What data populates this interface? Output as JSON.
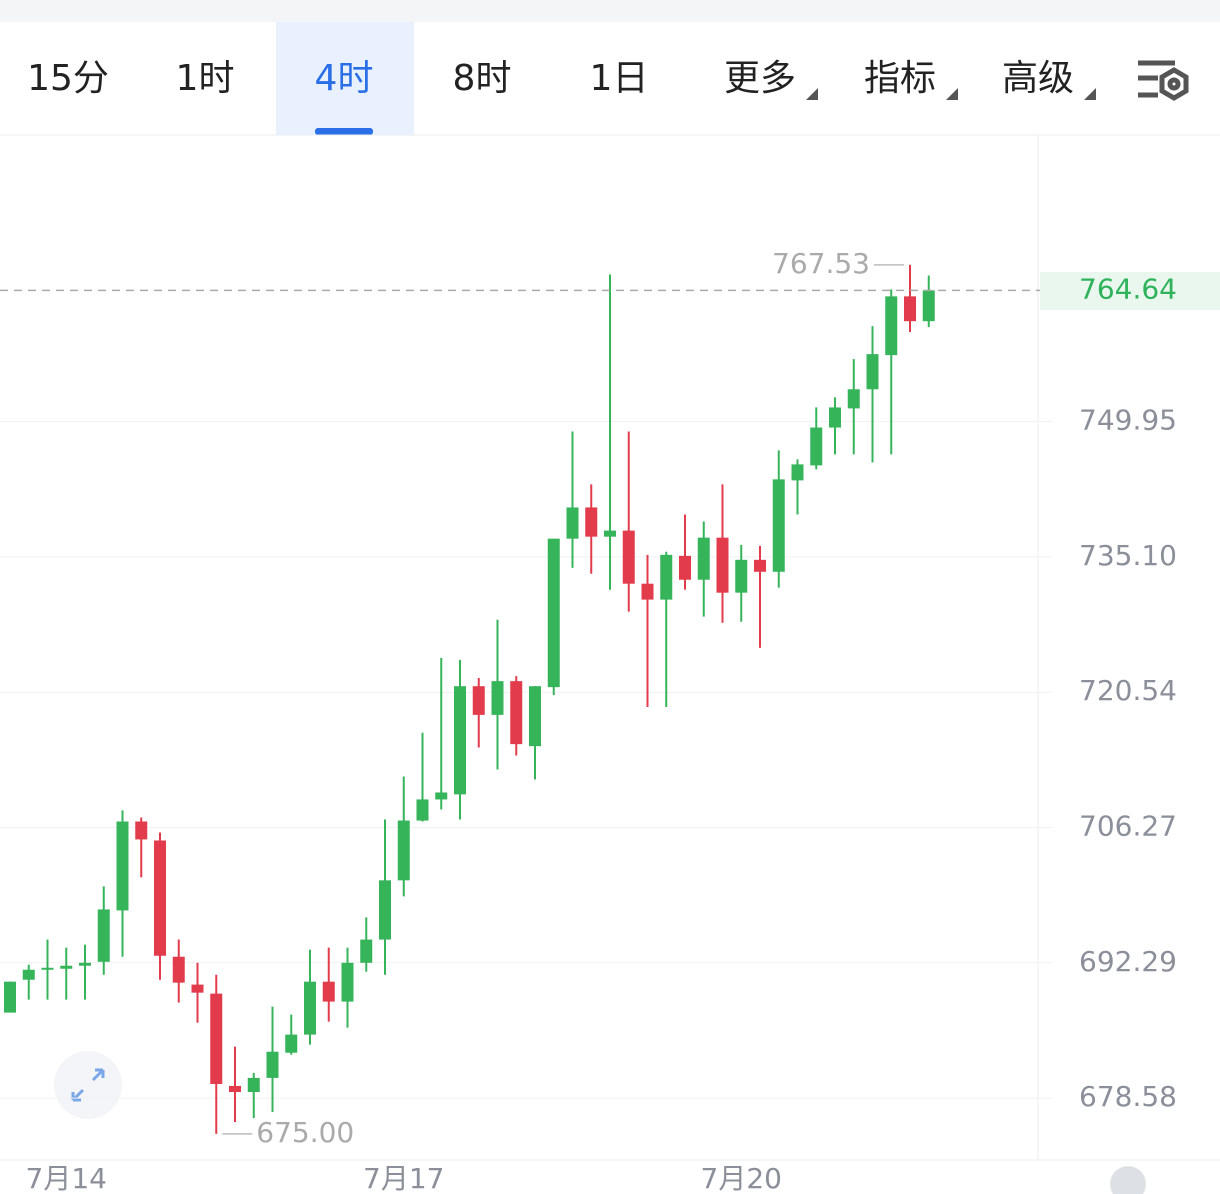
{
  "toolbar": {
    "tabs": [
      "15分",
      "1时",
      "4时",
      "8时",
      "1日",
      "更多",
      "指标",
      "高级"
    ],
    "selected": 2
  },
  "chart_data": {
    "type": "candlestick",
    "categories": [
      null,
      null,
      null,
      "7月14",
      null,
      null,
      null,
      null,
      null,
      null,
      null,
      null,
      null,
      null,
      null,
      null,
      null,
      null,
      null,
      null,
      null,
      "7月17",
      null,
      null,
      null,
      null,
      null,
      null,
      null,
      null,
      null,
      null,
      null,
      null,
      null,
      null,
      null,
      null,
      null,
      "7月20",
      null,
      null,
      null,
      null,
      null,
      null,
      null,
      null,
      null,
      null
    ],
    "open": [
      687.21,
      690.56,
      691.58,
      691.68,
      691.99,
      692.39,
      697.67,
      706.9,
      704.92,
      692.91,
      690.06,
      689.14,
      679.8,
      679.19,
      680.61,
      683.15,
      684.98,
      690.36,
      688.33,
      692.29,
      694.67,
      700.78,
      707.0,
      709.21,
      709.74,
      721.18,
      718.13,
      721.72,
      714.82,
      721.08,
      737.08,
      740.49,
      737.3,
      737.96,
      732.19,
      730.47,
      735.21,
      732.62,
      737.19,
      731.22,
      734.78,
      733.48,
      743.46,
      745.11,
      749.29,
      751.41,
      753.54,
      757.35,
      763.96,
      761.16
    ],
    "high": [
      690.36,
      692.09,
      694.67,
      693.84,
      694.15,
      700.16,
      708.06,
      707.32,
      705.75,
      694.67,
      692.29,
      691.07,
      683.76,
      681.12,
      687.82,
      687.01,
      693.63,
      693.84,
      693.84,
      696.95,
      707.11,
      711.62,
      716.24,
      724.2,
      723.99,
      722.05,
      728.3,
      722.26,
      721.18,
      737.08,
      748.85,
      743.02,
      766.43,
      748.85,
      735.32,
      735.65,
      739.72,
      738.95,
      743.02,
      736.41,
      736.3,
      746.76,
      745.77,
      751.52,
      752.64,
      756.9,
      760.6,
      764.75,
      767.53,
      766.32
    ],
    "low": [
      687.21,
      688.53,
      688.53,
      688.53,
      688.53,
      691.07,
      692.91,
      701.09,
      690.56,
      688.23,
      686.19,
      675.0,
      676.18,
      676.58,
      677.18,
      682.95,
      683.96,
      686.29,
      685.68,
      691.38,
      691.07,
      699.12,
      706.9,
      708.16,
      707.11,
      714.67,
      712.36,
      713.83,
      711.31,
      720.23,
      733.91,
      733.27,
      731.54,
      729.17,
      718.97,
      718.97,
      731.54,
      728.63,
      727.98,
      728.09,
      725.28,
      731.76,
      739.72,
      744.67,
      746.32,
      746.32,
      745.44,
      746.32,
      759.93,
      760.49
    ],
    "close": [
      690.36,
      691.58,
      691.78,
      691.99,
      692.29,
      697.77,
      706.9,
      705.03,
      693.01,
      690.26,
      689.24,
      680.0,
      679.19,
      680.61,
      683.25,
      684.98,
      690.36,
      688.33,
      692.29,
      694.67,
      700.78,
      707.0,
      709.21,
      709.94,
      721.18,
      718.13,
      721.72,
      715.03,
      721.18,
      737.08,
      740.49,
      737.3,
      737.96,
      732.19,
      730.47,
      735.32,
      732.62,
      737.19,
      731.22,
      734.78,
      733.48,
      743.57,
      745.22,
      749.29,
      751.52,
      753.54,
      757.46,
      763.96,
      761.16,
      764.64
    ],
    "up_color": "#35b45a",
    "down_color": "#e23b4c",
    "ylim": [
      672.4,
      782.4
    ],
    "yticks": [
      678.58,
      692.29,
      706.27,
      {
        "value": 720.54,
        "label": "720.54"
      },
      {
        "value": 735.1,
        "label": "735.10"
      },
      749.95
    ],
    "log_scale": true,
    "grid": true,
    "last_price": 764.64,
    "high_marker": 767.53,
    "low_marker": {
      "value": 675,
      "label": "675.00"
    }
  }
}
